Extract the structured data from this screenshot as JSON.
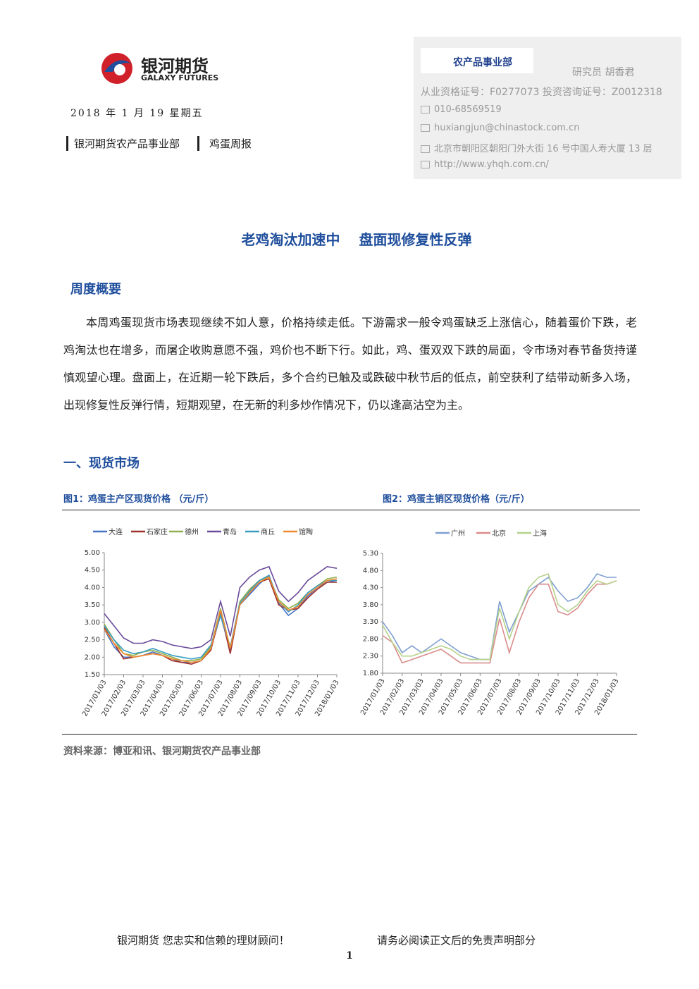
{
  "header": {
    "brand": "银河期货",
    "brand_en": "GALAXY FUTURES",
    "date": "2018 年 1 月 19 星期五",
    "dept": "银河期货农产品事业部",
    "report": "鸡蛋周报"
  },
  "contact": {
    "badge": "农产品事业部",
    "researcher": "研究员 胡香君",
    "license": "从业资格证号：F0277073 投资咨询证号：Z0012318",
    "phone": "010-68569519",
    "email": "huxiangjun@chinastock.com.cn",
    "address": "北京市朝阳区朝阳门外大街 16 号中国人寿大厦 13 层",
    "url": "http://www.yhqh.com.cn/"
  },
  "title": "老鸡淘汰加速中　 盘面现修复性反弹",
  "summary": {
    "heading": "周度概要",
    "text": "本周鸡蛋现货市场表现继续不如人意，价格持续走低。下游需求一般令鸡蛋缺乏上涨信心，随着蛋价下跌，老鸡淘汰也在增多，而屠企收购意愿不强，鸡价也不断下行。如此，鸡、蛋双双下跌的局面，令市场对春节备货持谨慎观望心理。盘面上，在近期一轮下跌后，多个合约已触及或跌破中秋节后的低点，前空获利了结带动新多入场，出现修复性反弹行情，短期观望，在无新的利多炒作情况下，仍以逢高沽空为主。"
  },
  "section1": "一、现货市场",
  "source": "资料来源：博亚和讯、银河期货农产品事业部",
  "footer": {
    "left": "银河期货 您忠实和信赖的理财顾问！",
    "right": "请务必阅读正文后的免责声明部分",
    "page": "1"
  },
  "chart_data": [
    {
      "type": "line",
      "title": "图1：鸡蛋主产区现货价格 （元/斤）",
      "categories": [
        "2017/01/03",
        null,
        "2017/02/03",
        null,
        "2017/03/03",
        null,
        "2017/04/03",
        null,
        "2017/05/03",
        null,
        "2017/06/03",
        null,
        "2017/07/03",
        null,
        "2017/08/03",
        null,
        "2017/09/03",
        null,
        "2017/10/03",
        null,
        "2017/11/03",
        null,
        "2017/12/03",
        null,
        "2018/01/03"
      ],
      "series": [
        {
          "name": "大连",
          "color": "#4472c4",
          "values": [
            2.8,
            2.3,
            2.0,
            2.0,
            2.05,
            2.15,
            2.05,
            1.95,
            1.85,
            1.85,
            1.9,
            2.25,
            3.2,
            2.2,
            3.5,
            3.8,
            4.1,
            4.35,
            3.55,
            3.2,
            3.4,
            3.75,
            4.0,
            4.15,
            4.2
          ]
        },
        {
          "name": "石家庄",
          "color": "#a0302c",
          "values": [
            2.85,
            2.4,
            1.95,
            2.0,
            2.05,
            2.1,
            2.05,
            1.9,
            1.85,
            1.8,
            1.9,
            2.2,
            3.3,
            2.1,
            3.55,
            3.85,
            4.15,
            4.25,
            3.5,
            3.35,
            3.4,
            3.7,
            3.95,
            4.15,
            4.15
          ]
        },
        {
          "name": "德州",
          "color": "#8fb04c",
          "values": [
            2.95,
            2.5,
            2.1,
            2.05,
            2.15,
            2.2,
            2.1,
            2.0,
            1.9,
            1.9,
            1.95,
            2.3,
            3.4,
            2.25,
            3.6,
            3.95,
            4.2,
            4.3,
            3.65,
            3.4,
            3.55,
            3.85,
            4.05,
            4.25,
            4.3
          ]
        },
        {
          "name": "青岛",
          "color": "#6a4a9a",
          "values": [
            3.25,
            2.9,
            2.55,
            2.4,
            2.4,
            2.5,
            2.45,
            2.35,
            2.3,
            2.25,
            2.3,
            2.5,
            3.6,
            2.6,
            4.0,
            4.3,
            4.5,
            4.6,
            3.9,
            3.6,
            3.85,
            4.2,
            4.4,
            4.6,
            4.55
          ]
        },
        {
          "name": "商丘",
          "color": "#3a9cc0",
          "values": [
            2.9,
            2.5,
            2.2,
            2.1,
            2.15,
            2.25,
            2.15,
            2.05,
            2.0,
            1.95,
            2.0,
            2.35,
            3.2,
            2.3,
            3.55,
            3.9,
            4.2,
            4.35,
            3.6,
            3.3,
            3.5,
            3.85,
            4.05,
            4.2,
            4.2
          ]
        },
        {
          "name": "馆陶",
          "color": "#f08a30",
          "values": [
            2.8,
            2.4,
            2.1,
            2.0,
            2.05,
            2.1,
            2.05,
            1.95,
            1.9,
            1.85,
            1.9,
            2.25,
            3.35,
            2.25,
            3.5,
            3.85,
            4.15,
            4.3,
            3.6,
            3.35,
            3.45,
            3.8,
            4.0,
            4.2,
            4.25
          ]
        }
      ],
      "ylim": [
        1.5,
        5.0
      ],
      "yticks": [
        {
          "value": 1.5,
          "label": "1.50"
        },
        {
          "value": 2,
          "label": "2.00"
        },
        {
          "value": 2.5,
          "label": "2.50"
        },
        {
          "value": 3,
          "label": "3.00"
        },
        {
          "value": 3.5,
          "label": "3.50"
        },
        {
          "value": 4,
          "label": "4.00"
        },
        {
          "value": 4.5,
          "label": "4.50"
        },
        {
          "value": 5,
          "label": "5.00"
        }
      ],
      "grid": false
    },
    {
      "type": "line",
      "title": "图2：鸡蛋主销区现货价格（元/斤）",
      "categories": [
        "2017/01/03",
        null,
        "2017/02/03",
        null,
        "2017/03/03",
        null,
        "2017/04/03",
        null,
        "2017/05/03",
        null,
        "2017/06/03",
        null,
        "2017/07/03",
        null,
        "2017/08/03",
        null,
        "2017/09/03",
        null,
        "2017/10/03",
        null,
        "2017/11/03",
        null,
        "2017/12/03",
        null,
        "2018/01/03"
      ],
      "series": [
        {
          "name": "广州",
          "color": "#7f9fd0",
          "values": [
            3.3,
            2.9,
            2.4,
            2.6,
            2.4,
            2.6,
            2.8,
            2.6,
            2.4,
            2.3,
            2.2,
            2.2,
            3.9,
            3.0,
            3.6,
            4.2,
            4.4,
            4.6,
            4.2,
            3.9,
            4.0,
            4.3,
            4.7,
            4.6,
            4.6
          ]
        },
        {
          "name": "北京",
          "color": "#d98c8c",
          "values": [
            2.9,
            2.7,
            2.1,
            2.2,
            2.3,
            2.4,
            2.5,
            2.3,
            2.1,
            2.1,
            2.1,
            2.1,
            3.4,
            2.4,
            3.3,
            4.0,
            4.4,
            4.4,
            3.6,
            3.5,
            3.7,
            4.1,
            4.4,
            4.4,
            4.5
          ]
        },
        {
          "name": "上海",
          "color": "#b5d18a",
          "values": [
            3.2,
            2.7,
            2.3,
            2.3,
            2.4,
            2.5,
            2.6,
            2.5,
            2.3,
            2.2,
            2.2,
            2.2,
            3.7,
            2.8,
            3.6,
            4.3,
            4.6,
            4.7,
            3.8,
            3.6,
            3.8,
            4.2,
            4.5,
            4.4,
            4.5
          ]
        }
      ],
      "ylim": [
        1.8,
        5.3
      ],
      "yticks": [
        {
          "value": 1.8,
          "label": "1.80"
        },
        {
          "value": 2.3,
          "label": "2.30"
        },
        {
          "value": 2.8,
          "label": "2.80"
        },
        {
          "value": 3.3,
          "label": "3.30"
        },
        {
          "value": 3.8,
          "label": "3.80"
        },
        {
          "value": 4.3,
          "label": "4.30"
        },
        {
          "value": 4.8,
          "label": "4.80"
        },
        {
          "value": 5.3,
          "label": "5.30"
        }
      ],
      "grid": false
    }
  ]
}
